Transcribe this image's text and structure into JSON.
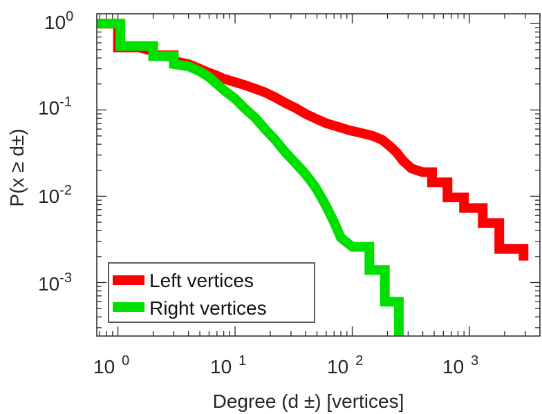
{
  "chart_data": {
    "type": "line",
    "scale": "log-log",
    "xlabel": "Degree (d  ±) [vertices]",
    "ylabel": "P(x ≥ d±)",
    "xlim": [
      0.66,
      4000
    ],
    "ylim": [
      0.00024,
      1.3
    ],
    "x_ticks": [
      {
        "value": 1,
        "base": "10",
        "exp": "0"
      },
      {
        "value": 10,
        "base": "10",
        "exp": "1"
      },
      {
        "value": 100,
        "base": "10",
        "exp": "2"
      },
      {
        "value": 1000,
        "base": "10",
        "exp": "3"
      }
    ],
    "y_ticks": [
      {
        "value": 1,
        "base": "10",
        "exp": "0"
      },
      {
        "value": 0.1,
        "base": "10",
        "exp": "-1"
      },
      {
        "value": 0.01,
        "base": "10",
        "exp": "-2"
      },
      {
        "value": 0.001,
        "base": "10",
        "exp": "-3"
      }
    ],
    "series": [
      {
        "name": "Left vertices",
        "color": "#ff0000",
        "points": [
          [
            0.66,
            1.0
          ],
          [
            1.0,
            1.0
          ],
          [
            1.0,
            0.53
          ],
          [
            1.5,
            0.53
          ],
          [
            2.0,
            0.48
          ],
          [
            2.0,
            0.43
          ],
          [
            3.0,
            0.43
          ],
          [
            3.0,
            0.37
          ],
          [
            4.0,
            0.34
          ],
          [
            5.0,
            0.3
          ],
          [
            6.0,
            0.27
          ],
          [
            7.0,
            0.25
          ],
          [
            8.0,
            0.23
          ],
          [
            10.0,
            0.21
          ],
          [
            12.0,
            0.195
          ],
          [
            15.0,
            0.175
          ],
          [
            18.0,
            0.16
          ],
          [
            22.0,
            0.14
          ],
          [
            27.0,
            0.12
          ],
          [
            33.0,
            0.105
          ],
          [
            40.0,
            0.09
          ],
          [
            50.0,
            0.078
          ],
          [
            60.0,
            0.07
          ],
          [
            75.0,
            0.064
          ],
          [
            95.0,
            0.058
          ],
          [
            120.0,
            0.054
          ],
          [
            150.0,
            0.05
          ],
          [
            180.0,
            0.045
          ],
          [
            210.0,
            0.038
          ],
          [
            240.0,
            0.032
          ],
          [
            270.0,
            0.026
          ],
          [
            320.0,
            0.021
          ],
          [
            400.0,
            0.019
          ],
          [
            480.0,
            0.019
          ],
          [
            480.0,
            0.0145
          ],
          [
            650.0,
            0.0145
          ],
          [
            650.0,
            0.0097
          ],
          [
            900.0,
            0.0097
          ],
          [
            900.0,
            0.0073
          ],
          [
            1300.0,
            0.0073
          ],
          [
            1300.0,
            0.0049
          ],
          [
            1800.0,
            0.0049
          ],
          [
            1800.0,
            0.00245
          ],
          [
            2300.0,
            0.00245
          ],
          [
            2900.0,
            0.00245
          ],
          [
            2900.0,
            0.0018
          ]
        ]
      },
      {
        "name": "Right vertices",
        "color": "#00e000",
        "points": [
          [
            0.66,
            1.0
          ],
          [
            1.05,
            1.0
          ],
          [
            1.05,
            0.55
          ],
          [
            2.0,
            0.55
          ],
          [
            2.0,
            0.42
          ],
          [
            3.0,
            0.42
          ],
          [
            3.0,
            0.34
          ],
          [
            4.0,
            0.32
          ],
          [
            5.0,
            0.28
          ],
          [
            6.0,
            0.24
          ],
          [
            7.0,
            0.2
          ],
          [
            8.0,
            0.17
          ],
          [
            10.0,
            0.135
          ],
          [
            12.0,
            0.105
          ],
          [
            15.0,
            0.08
          ],
          [
            18.0,
            0.06
          ],
          [
            22.0,
            0.045
          ],
          [
            27.0,
            0.032
          ],
          [
            33.0,
            0.024
          ],
          [
            40.0,
            0.018
          ],
          [
            48.0,
            0.013
          ],
          [
            55.0,
            0.0095
          ],
          [
            62.0,
            0.007
          ],
          [
            70.0,
            0.005
          ],
          [
            80.0,
            0.0033
          ],
          [
            100.0,
            0.0026
          ],
          [
            120.0,
            0.0026
          ],
          [
            140.0,
            0.0026
          ],
          [
            140.0,
            0.0014
          ],
          [
            190.0,
            0.0014
          ],
          [
            190.0,
            0.0006
          ],
          [
            250.0,
            0.0006
          ],
          [
            250.0,
            0.00024
          ]
        ]
      }
    ],
    "legend": {
      "placement": "bottom-left",
      "entries": [
        "Left vertices",
        "Right vertices"
      ]
    },
    "grid": false
  }
}
